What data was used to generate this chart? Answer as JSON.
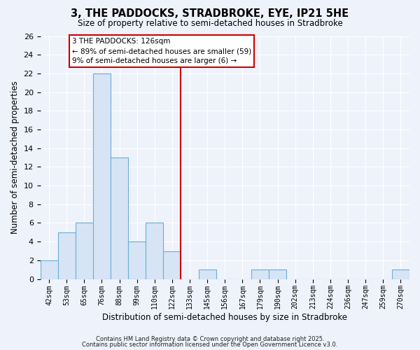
{
  "title": "3, THE PADDOCKS, STRADBROKE, EYE, IP21 5HE",
  "subtitle": "Size of property relative to semi-detached houses in Stradbroke",
  "xlabel": "Distribution of semi-detached houses by size in Stradbroke",
  "ylabel": "Number of semi-detached properties",
  "bin_labels": [
    "42sqm",
    "53sqm",
    "65sqm",
    "76sqm",
    "88sqm",
    "99sqm",
    "110sqm",
    "122sqm",
    "133sqm",
    "145sqm",
    "156sqm",
    "167sqm",
    "179sqm",
    "190sqm",
    "202sqm",
    "213sqm",
    "224sqm",
    "236sqm",
    "247sqm",
    "259sqm",
    "270sqm"
  ],
  "bar_heights": [
    2,
    5,
    6,
    22,
    13,
    4,
    6,
    3,
    0,
    1,
    0,
    0,
    1,
    1,
    0,
    0,
    0,
    0,
    0,
    0,
    1
  ],
  "bar_color": "#d6e4f5",
  "bar_edge_color": "#6aaed6",
  "vline_color": "#cc0000",
  "annotation_title": "3 THE PADDOCKS: 126sqm",
  "annotation_line1": "← 89% of semi-detached houses are smaller (59)",
  "annotation_line2": "9% of semi-detached houses are larger (6) →",
  "ylim": [
    0,
    26
  ],
  "yticks": [
    0,
    2,
    4,
    6,
    8,
    10,
    12,
    14,
    16,
    18,
    20,
    22,
    24,
    26
  ],
  "background_color": "#eef2fb",
  "plot_bg_color": "#eef2fb",
  "grid_color": "#ffffff",
  "footnote1": "Contains HM Land Registry data © Crown copyright and database right 2025.",
  "footnote2": "Contains public sector information licensed under the Open Government Licence v3.0."
}
